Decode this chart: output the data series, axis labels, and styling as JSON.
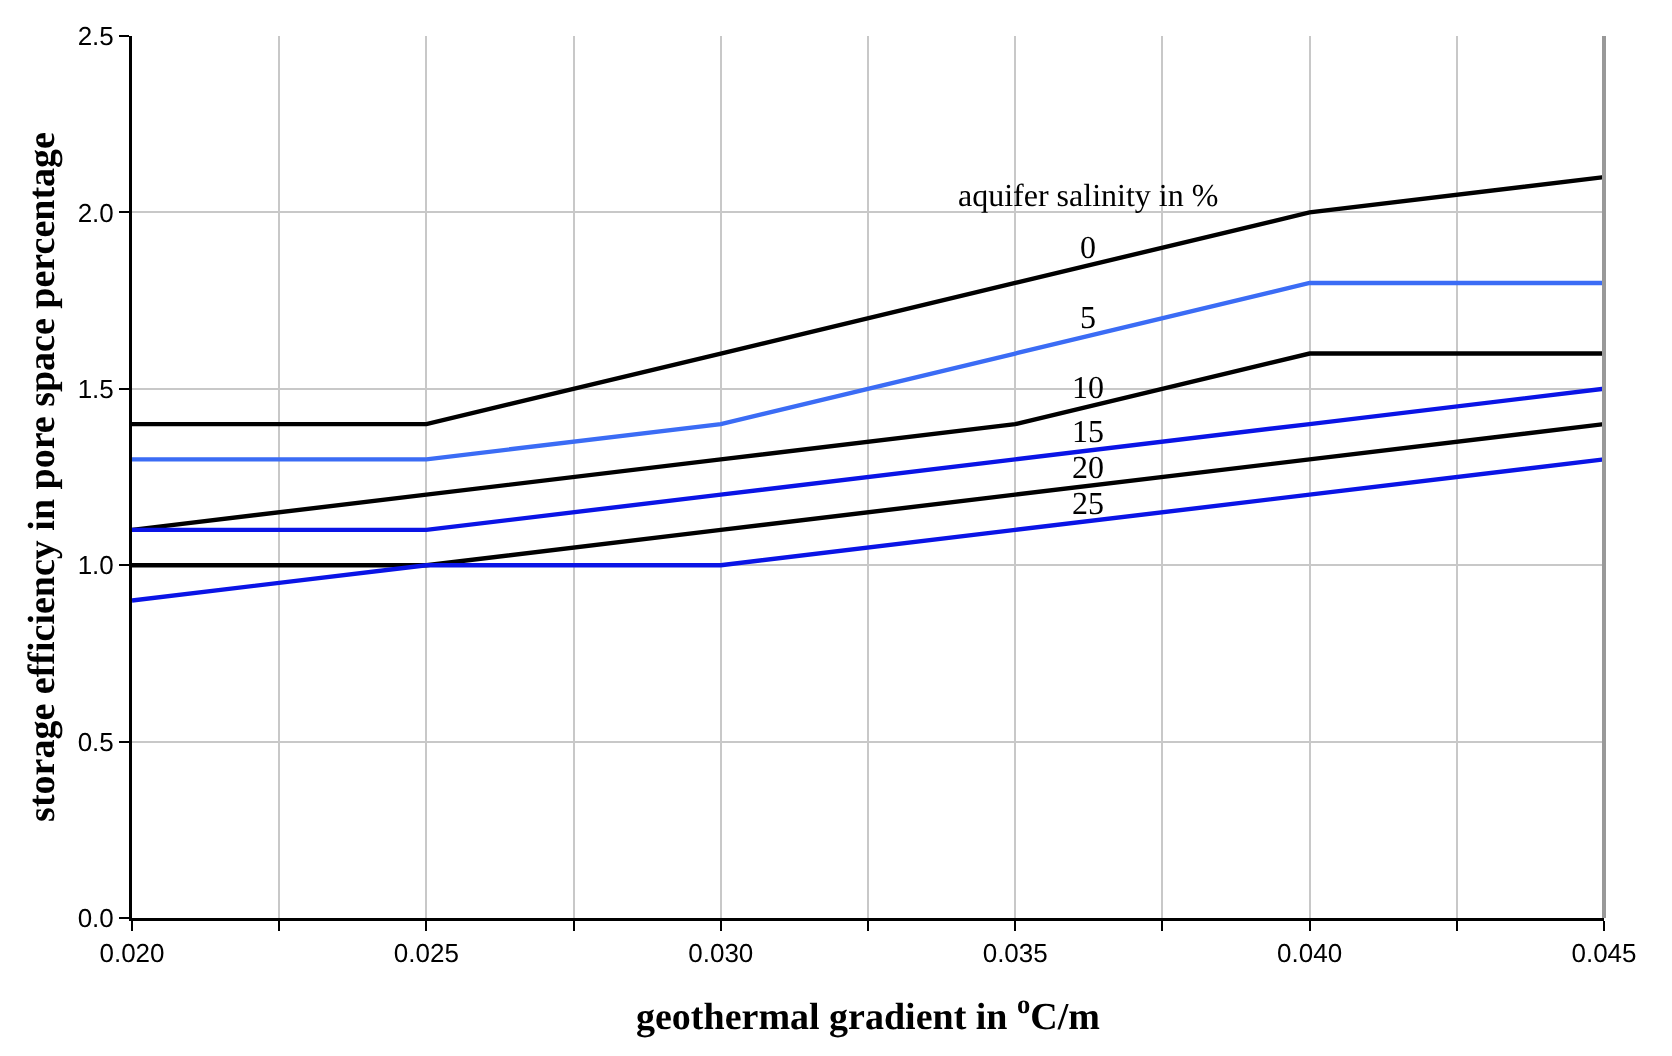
{
  "chart_data": {
    "type": "line",
    "xlabel": "geothermal gradient in $^{o}$C/m",
    "ylabel": "storage efficiency in pore space percentage",
    "legend_title": "aquifer salinity in %",
    "x": [
      0.02,
      0.025,
      0.03,
      0.035,
      0.04,
      0.045
    ],
    "series": [
      {
        "name": "0",
        "color": "#000000",
        "values": [
          1.4,
          1.4,
          1.6,
          1.8,
          2.0,
          2.1
        ]
      },
      {
        "name": "5",
        "color": "#3b6cf5",
        "values": [
          1.3,
          1.3,
          1.4,
          1.6,
          1.8,
          1.8
        ]
      },
      {
        "name": "10",
        "color": "#000000",
        "values": [
          1.1,
          1.2,
          1.3,
          1.4,
          1.6,
          1.6
        ]
      },
      {
        "name": "15",
        "color": "#0a14e6",
        "values": [
          1.1,
          1.1,
          1.2,
          1.3,
          1.4,
          1.5
        ]
      },
      {
        "name": "20",
        "color": "#000000",
        "values": [
          1.0,
          1.0,
          1.1,
          1.2,
          1.3,
          1.4
        ]
      },
      {
        "name": "25",
        "color": "#0a14e6",
        "values": [
          0.9,
          1.0,
          1.0,
          1.1,
          1.2,
          1.3
        ]
      }
    ],
    "xlim": [
      0.02,
      0.045
    ],
    "xticks": [
      {
        "value": 0.02,
        "label": "0.020"
      },
      {
        "value": 0.0225,
        "label": null
      },
      {
        "value": 0.025,
        "label": "0.025"
      },
      {
        "value": 0.0275,
        "label": null
      },
      {
        "value": 0.03,
        "label": "0.030"
      },
      {
        "value": 0.0325,
        "label": null
      },
      {
        "value": 0.035,
        "label": "0.035"
      },
      {
        "value": 0.0375,
        "label": null
      },
      {
        "value": 0.04,
        "label": "0.040"
      },
      {
        "value": 0.0425,
        "label": null
      },
      {
        "value": 0.045,
        "label": "0.045"
      }
    ],
    "ylim": [
      0,
      2.5
    ],
    "yticks": [
      {
        "value": 0,
        "label": "0.0"
      },
      {
        "value": 0.5,
        "label": "0.5"
      },
      {
        "value": 1,
        "label": "1.0"
      },
      {
        "value": 1.5,
        "label": "1.5"
      },
      {
        "value": 2,
        "label": "2.0"
      },
      {
        "value": 2.5,
        "label": "2.5"
      }
    ],
    "grid": true,
    "legend": false,
    "marker": "none",
    "line_style": "solid"
  }
}
